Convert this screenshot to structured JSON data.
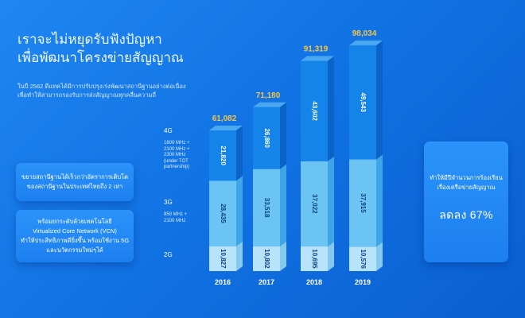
{
  "headline": {
    "lines": [
      "เราจะไม่หยุดรับฟังปัญหา",
      "เพื่อพัฒนาโครงข่ายสัญญาณ"
    ]
  },
  "intro": {
    "lines": [
      "ในปี 2562 ดีแทคได้มีการปรับปรุงเร่งพัฒนาสถานีฐานอย่างต่อเนื่อง",
      "เพื่อทำให้สามารถรองรับการส่งสัญญาณทุกคลื่นความถี่"
    ]
  },
  "cards": {
    "capacity": {
      "lines": [
        "ขยายสถานีฐานได้เร็วกว่าอัตราการเติบโต",
        "ของสถานีฐานในประเทศไทยถึง 2 เท่า"
      ]
    },
    "vcn": {
      "lines": [
        "พร้อมยกระดับด้วยเทคโนโลยี",
        "Virtualized Core Network (VCN)",
        "ทำให้ประสิทธิภาพดียิ่งขึ้น พร้อมใช้งาน 5G",
        "และนวัตกรรมใหม่ๆได้"
      ]
    },
    "complaints": {
      "lines": [
        "ทำให้มีปีจำนวนการร้องเรียน",
        "เรื่องเครือข่ายสัญญาณ"
      ],
      "result": "ลดลง 67%"
    }
  },
  "legend": {
    "g4": {
      "label": "4G",
      "note": [
        "1800 MHz +",
        "2100 MHz +",
        "2300 MHz",
        "(under TOT",
        "partnership)"
      ]
    },
    "g3": {
      "label": "3G",
      "note": [
        "850 MHz +",
        "2100 MHz"
      ]
    },
    "g2": {
      "label": "2G"
    }
  },
  "colors": {
    "background": "#1173e4",
    "g2": "#b9e3fb",
    "g3": "#6cc4f5",
    "g4": "#1584ea",
    "total_label": "#f6c445"
  },
  "chart_data": {
    "type": "bar",
    "stacked": true,
    "categories": [
      "2016",
      "2017",
      "2018",
      "2019"
    ],
    "series": [
      {
        "name": "2G",
        "values": [
          10827,
          10802,
          10695,
          10576
        ]
      },
      {
        "name": "3G",
        "values": [
          28435,
          33518,
          37022,
          37915
        ]
      },
      {
        "name": "4G",
        "values": [
          21820,
          26860,
          43602,
          49543
        ]
      }
    ],
    "totals": [
      61082,
      71180,
      91319,
      98034
    ],
    "value_labels": {
      "2G": [
        "10,827",
        "10,802",
        "10,695",
        "10,576"
      ],
      "3G": [
        "28,435",
        "33,518",
        "37,022",
        "37,915"
      ],
      "4G": [
        "21,820",
        "26,860",
        "43,602",
        "49,543"
      ]
    },
    "total_labels": [
      "61,082",
      "71,180",
      "91,319",
      "98,034"
    ],
    "ylim": [
      0,
      98034
    ],
    "grid": false,
    "legend": "left"
  }
}
